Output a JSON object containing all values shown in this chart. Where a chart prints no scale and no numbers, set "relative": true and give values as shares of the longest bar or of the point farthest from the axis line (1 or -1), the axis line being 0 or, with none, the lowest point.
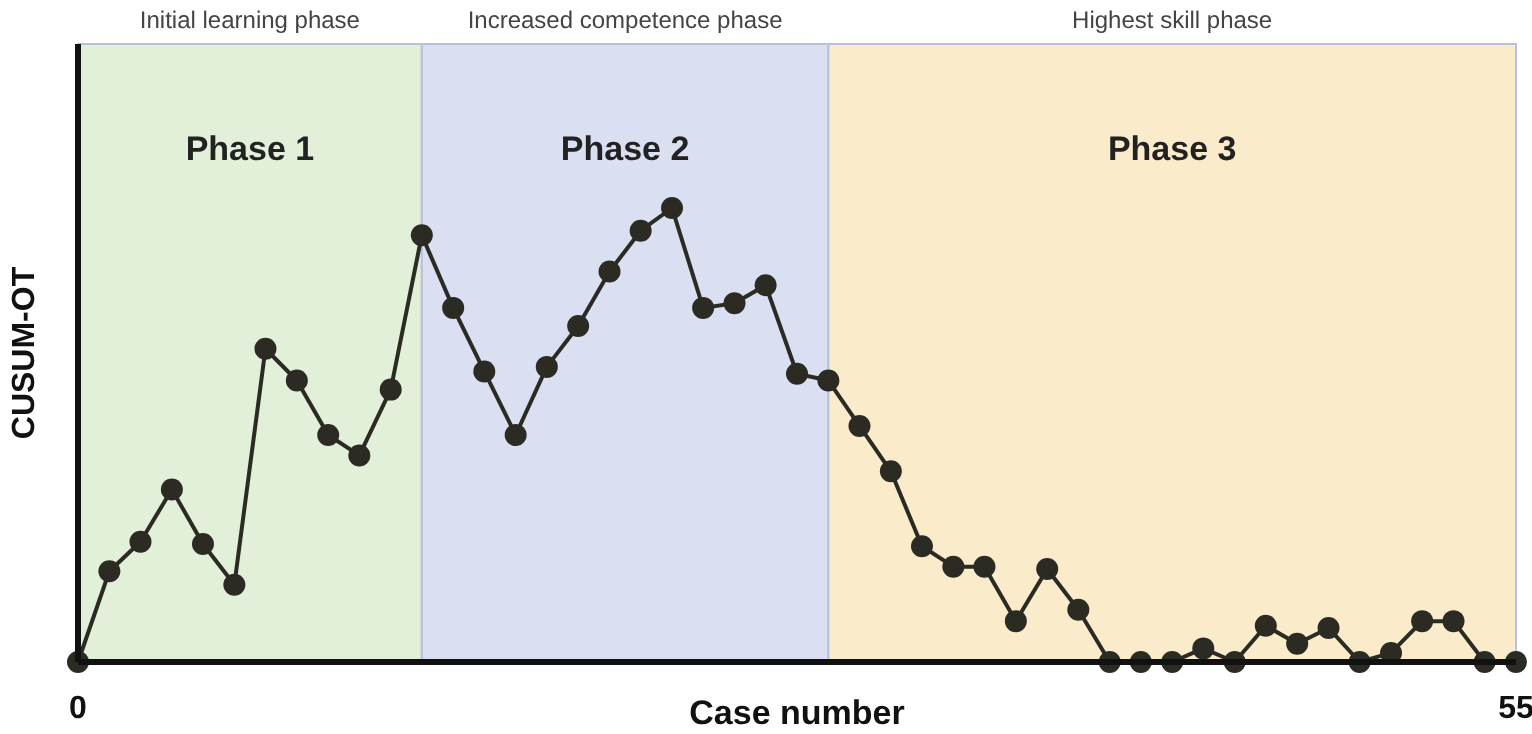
{
  "chart_data": {
    "type": "line",
    "relative": true,
    "xlabel": "Case number",
    "ylabel": "CUSUM-OT",
    "xlim": [
      0,
      55
    ],
    "xticks": [
      0,
      55
    ],
    "marker": "circle",
    "line_style": "solid",
    "x": [
      0,
      1.2,
      2.39,
      3.59,
      4.78,
      5.98,
      7.17,
      8.37,
      9.57,
      10.76,
      11.96,
      13.15,
      14.35,
      15.54,
      16.74,
      17.93,
      19.13,
      20.33,
      21.52,
      22.72,
      23.91,
      25.11,
      26.3,
      27.5,
      28.7,
      29.89,
      31.09,
      32.28,
      33.48,
      34.67,
      35.87,
      37.07,
      38.26,
      39.46,
      40.65,
      41.85,
      43.04,
      44.24,
      45.43,
      46.63,
      47.83,
      49.02,
      50.22,
      51.41,
      52.61,
      53.8,
      55
    ],
    "series": [
      {
        "color": "#2b2b24",
        "values": [
          0,
          0.2,
          0.265,
          0.38,
          0.26,
          0.17,
          0.69,
          0.62,
          0.5,
          0.455,
          0.6,
          0.94,
          0.78,
          0.64,
          0.5,
          0.65,
          0.74,
          0.86,
          0.95,
          1,
          0.78,
          0.79,
          0.83,
          0.635,
          0.62,
          0.52,
          0.42,
          0.255,
          0.21,
          0.21,
          0.09,
          0.205,
          0.115,
          0,
          0,
          0,
          0.03,
          0,
          0.08,
          0.04,
          0.075,
          0,
          0.02,
          0.09,
          0.09,
          0,
          0
        ]
      }
    ],
    "bands": [
      {
        "axis": "x",
        "from": 0,
        "to": 13.15,
        "label": "Phase 1",
        "color": "#e2efd9"
      },
      {
        "axis": "x",
        "from": 13.15,
        "to": 28.7,
        "label": "Phase 2",
        "color": "#dadff2"
      },
      {
        "axis": "x",
        "from": 28.7,
        "to": 55,
        "label": "Phase 3",
        "color": "#faeccb"
      }
    ],
    "annotations": [
      "Initial learning phase",
      "Increased competence phase",
      "Highest skill phase"
    ]
  }
}
